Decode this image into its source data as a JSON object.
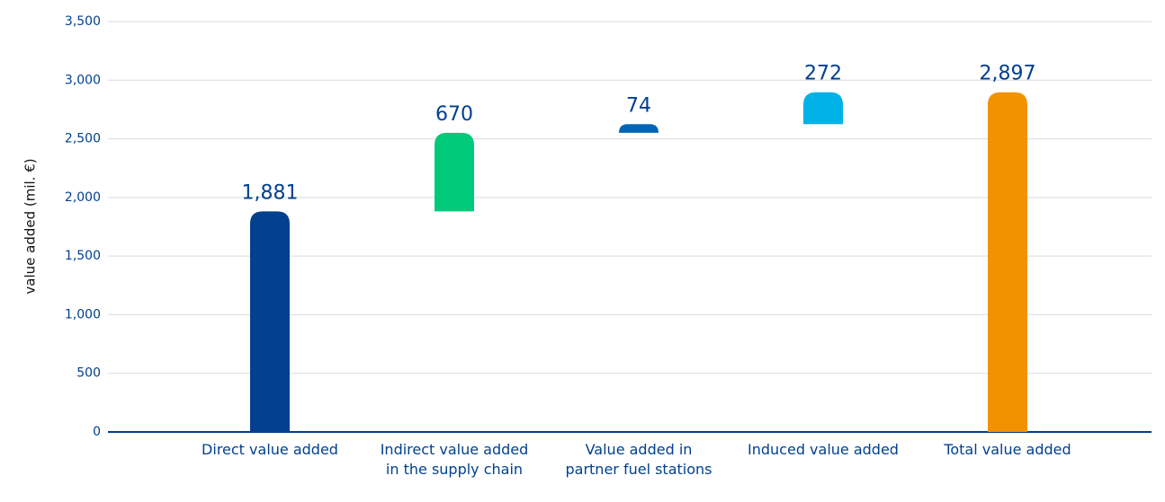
{
  "chart_data": {
    "type": "waterfall",
    "y_label": "value added (mil. €)",
    "categories": [
      "Direct value added",
      "Indirect value added in the supply chain",
      "Value added in partner fuel stations",
      "Induced value added",
      "Total value added"
    ],
    "values": [
      1881,
      670,
      74,
      272,
      2897
    ],
    "value_labels": [
      "1,881",
      "670",
      "74",
      "272",
      "2,897"
    ],
    "colors": [
      "#00408f",
      "#00c97a",
      "#0066b3",
      "#00b2e8",
      "#f39200"
    ],
    "ylim": [
      0,
      3500
    ],
    "yticks": [
      0,
      500,
      {
        "value": 1000,
        "label": "1,000"
      },
      {
        "value": 1500,
        "label": "1,500"
      },
      {
        "value": 2000,
        "label": "2,000"
      },
      {
        "value": 2500,
        "label": "2,500"
      },
      {
        "value": 3000,
        "label": "3,000"
      },
      {
        "value": 3500,
        "label": "3,500"
      }
    ],
    "grid": true
  }
}
